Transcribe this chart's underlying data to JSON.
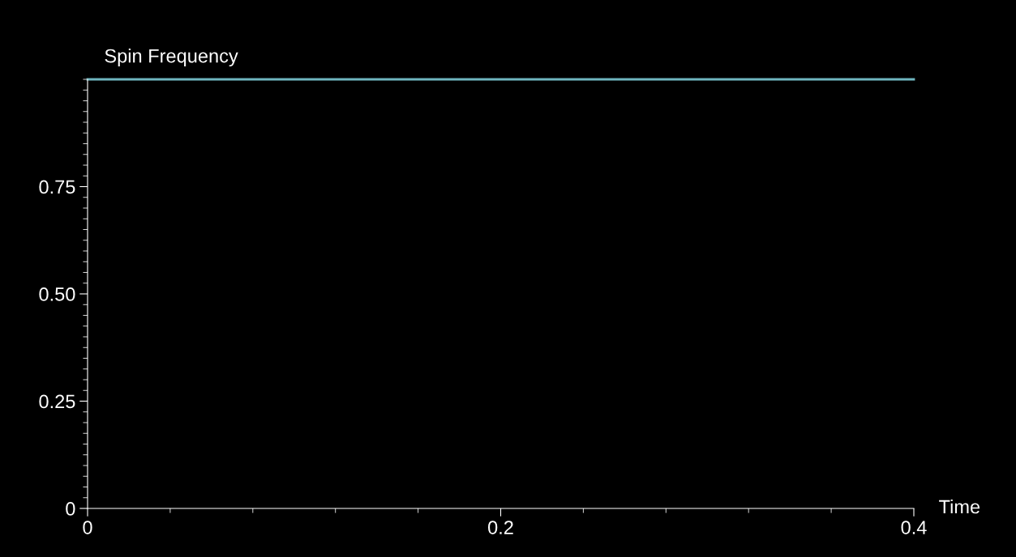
{
  "chart_data": {
    "type": "line",
    "ylabel": "Spin Frequency",
    "xlabel": "Time",
    "x": [
      0,
      0.4
    ],
    "series": [
      {
        "color": "#6fb6bf",
        "values": [
          1.0,
          1.0
        ]
      }
    ],
    "xlim": [
      0,
      0.4
    ],
    "xticks": [
      0,
      0.2,
      0.4
    ],
    "ylim": [
      0,
      1.0
    ],
    "yticks": [
      {
        "value": 0,
        "label": "0"
      },
      {
        "value": 0.25,
        "label": "0.25"
      },
      {
        "value": 0.5,
        "label": "0.50"
      },
      {
        "value": 0.75,
        "label": "0.75"
      }
    ],
    "grid": false,
    "legend": false,
    "marker": "none",
    "line_style": "solid"
  }
}
